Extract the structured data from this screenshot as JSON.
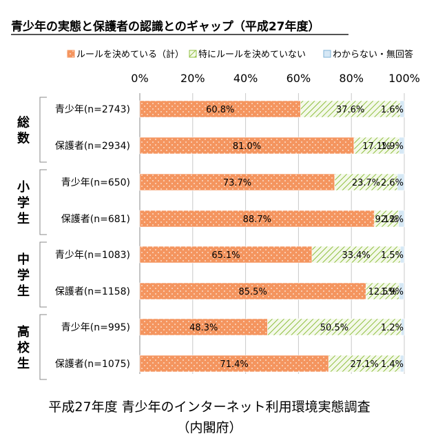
{
  "chart_data": {
    "type": "bar",
    "orientation": "horizontal",
    "stacked": true,
    "title": "青少年の実態と保護者の認識とのギャップ（平成27年度）",
    "xlim": [
      0,
      100
    ],
    "x_ticks": [
      "0%",
      "20%",
      "40%",
      "60%",
      "80%",
      "100%"
    ],
    "legend": {
      "placement": "top",
      "items": [
        {
          "label": "ルールを決めている（計）",
          "color": "#f4955f",
          "pattern": "dots"
        },
        {
          "label": "特にルールを決めていない",
          "color": "#8fbf3f",
          "pattern": "hatch"
        },
        {
          "label": "わからない・無回答",
          "color": "#7fb2d6",
          "pattern": "plain"
        }
      ]
    },
    "groups": [
      {
        "label": "総数",
        "rows": [
          {
            "label": "青少年(n=2743)",
            "values": [
              60.8,
              37.6,
              1.6
            ],
            "value_labels": [
              "60.8%",
              "37.6%",
              "1.6%"
            ]
          },
          {
            "label": "保護者(n=2934)",
            "values": [
              81.0,
              17.1,
              1.9
            ],
            "value_labels": [
              "81.0%",
              "17.1%",
              "1.9%"
            ]
          }
        ]
      },
      {
        "label": "小学生",
        "rows": [
          {
            "label": "青少年(n=650)",
            "values": [
              73.7,
              23.7,
              2.6
            ],
            "value_labels": [
              "73.7%",
              "23.7%",
              "2.6%"
            ]
          },
          {
            "label": "保護者(n=681)",
            "values": [
              88.7,
              9.1,
              2.2
            ],
            "value_labels": [
              "88.7%",
              "9.1%",
              "2.2%"
            ]
          }
        ]
      },
      {
        "label": "中学生",
        "rows": [
          {
            "label": "青少年(n=1083)",
            "values": [
              65.1,
              33.4,
              1.5
            ],
            "value_labels": [
              "65.1%",
              "33.4%",
              "1.5%"
            ]
          },
          {
            "label": "保護者(n=1158)",
            "values": [
              85.5,
              12.5,
              1.9
            ],
            "value_labels": [
              "85.5%",
              "12.5%",
              "1.9%"
            ]
          }
        ]
      },
      {
        "label": "高校生",
        "rows": [
          {
            "label": "青少年(n=995)",
            "values": [
              48.3,
              50.5,
              1.2
            ],
            "value_labels": [
              "48.3%",
              "50.5%",
              "1.2%"
            ]
          },
          {
            "label": "保護者(n=1075)",
            "values": [
              71.4,
              27.1,
              1.4
            ],
            "value_labels": [
              "71.4%",
              "27.1%",
              "1.4%"
            ]
          }
        ]
      }
    ],
    "source_lines": [
      "平成27年度 青少年のインターネット利用環境実態調査",
      "（内閣府）"
    ]
  }
}
